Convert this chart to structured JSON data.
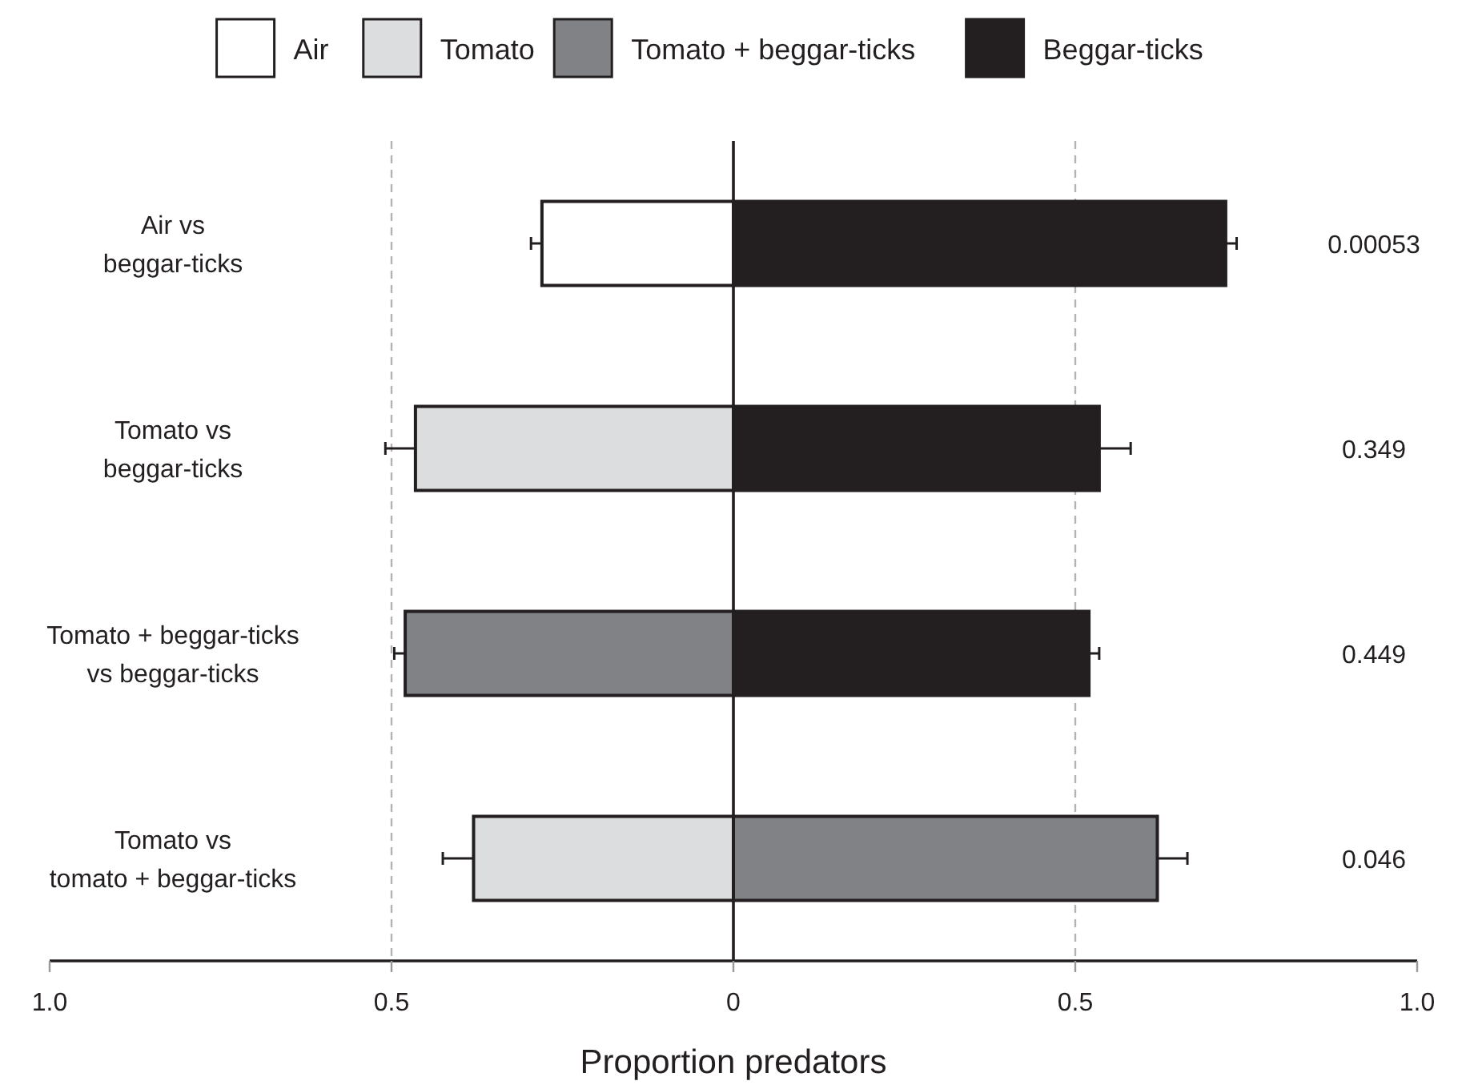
{
  "chart_data": {
    "type": "bar",
    "orientation": "horizontal",
    "xlabel": "Proportion predators",
    "categories": [
      "Air vs\nbeggar-ticks",
      "Tomato vs\nbeggar-ticks",
      "Tomato + beggar-ticks\nvs beggar-ticks",
      "Tomato vs\ntomato + beggar-ticks"
    ],
    "series": [
      {
        "name": "Air",
        "color": "#ffffff",
        "values": [
          -0.28,
          null,
          null,
          null
        ],
        "errors": [
          0.016,
          null,
          null,
          null
        ]
      },
      {
        "name": "Tomato",
        "color": "#dcdddf",
        "values": [
          null,
          -0.465,
          null,
          -0.38
        ],
        "errors": [
          null,
          0.044,
          null,
          0.045
        ]
      },
      {
        "name": "Tomato + beggar-ticks",
        "color": "#808285",
        "values": [
          null,
          null,
          -0.48,
          0.62
        ],
        "errors": [
          null,
          null,
          0.016,
          0.044
        ]
      },
      {
        "name": "Beggar-ticks",
        "color": "#231f20",
        "values": [
          0.72,
          0.535,
          0.52,
          null
        ],
        "errors": [
          0.016,
          0.046,
          0.015,
          null
        ]
      }
    ],
    "xlim": [
      -1,
      1
    ],
    "xticks": [
      {
        "value": -1,
        "label": "1.0"
      },
      {
        "value": -0.5,
        "label": "0.5"
      },
      0,
      0.5,
      {
        "value": 1,
        "label": "1.0"
      }
    ],
    "ref_lines": [
      {
        "axis": "x",
        "value": -0.5,
        "color": "#b3b3b3",
        "line_style": "dashed"
      },
      {
        "axis": "x",
        "value": 0,
        "color": "#231f20",
        "line_style": "solid"
      },
      {
        "axis": "x",
        "value": 0.5,
        "color": "#b3b3b3",
        "line_style": "dashed"
      }
    ],
    "annotations": [
      "0.00053",
      "0.349",
      "0.449",
      "0.046"
    ],
    "stacked": true,
    "legend": "top"
  }
}
